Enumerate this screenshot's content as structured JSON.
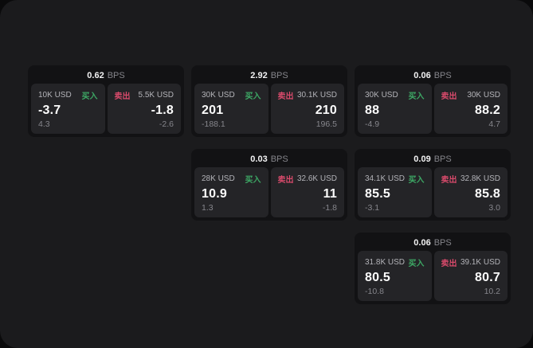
{
  "labels": {
    "bps_suffix": "BPS",
    "buy": "买入",
    "sell": "卖出"
  },
  "colors": {
    "buy_green": "#3da865",
    "sell_red": "#d84a6b",
    "surface": "#1b1b1d",
    "card": "#121214",
    "panel": "#242427"
  },
  "cards": [
    {
      "bps": "0.62",
      "col": 1,
      "row": 1,
      "buy": {
        "amount": "10K USD",
        "main": "-3.7",
        "sub": "4.3"
      },
      "sell": {
        "amount": "5.5K USD",
        "main": "-1.8",
        "sub": "-2.6"
      }
    },
    {
      "bps": "2.92",
      "col": 2,
      "row": 1,
      "buy": {
        "amount": "30K USD",
        "main": "201",
        "sub": "-188.1"
      },
      "sell": {
        "amount": "30.1K USD",
        "main": "210",
        "sub": "196.5"
      }
    },
    {
      "bps": "0.06",
      "col": 3,
      "row": 1,
      "buy": {
        "amount": "30K USD",
        "main": "88",
        "sub": "-4.9"
      },
      "sell": {
        "amount": "30K USD",
        "main": "88.2",
        "sub": "4.7"
      }
    },
    {
      "bps": "0.03",
      "col": 2,
      "row": 2,
      "buy": {
        "amount": "28K USD",
        "main": "10.9",
        "sub": "1.3"
      },
      "sell": {
        "amount": "32.6K USD",
        "main": "11",
        "sub": "-1.8"
      }
    },
    {
      "bps": "0.09",
      "col": 3,
      "row": 2,
      "buy": {
        "amount": "34.1K USD",
        "main": "85.5",
        "sub": "-3.1"
      },
      "sell": {
        "amount": "32.8K USD",
        "main": "85.8",
        "sub": "3.0"
      }
    },
    {
      "bps": "0.06",
      "col": 3,
      "row": 3,
      "buy": {
        "amount": "31.8K USD",
        "main": "80.5",
        "sub": "-10.8"
      },
      "sell": {
        "amount": "39.1K USD",
        "main": "80.7",
        "sub": "10.2"
      }
    }
  ]
}
